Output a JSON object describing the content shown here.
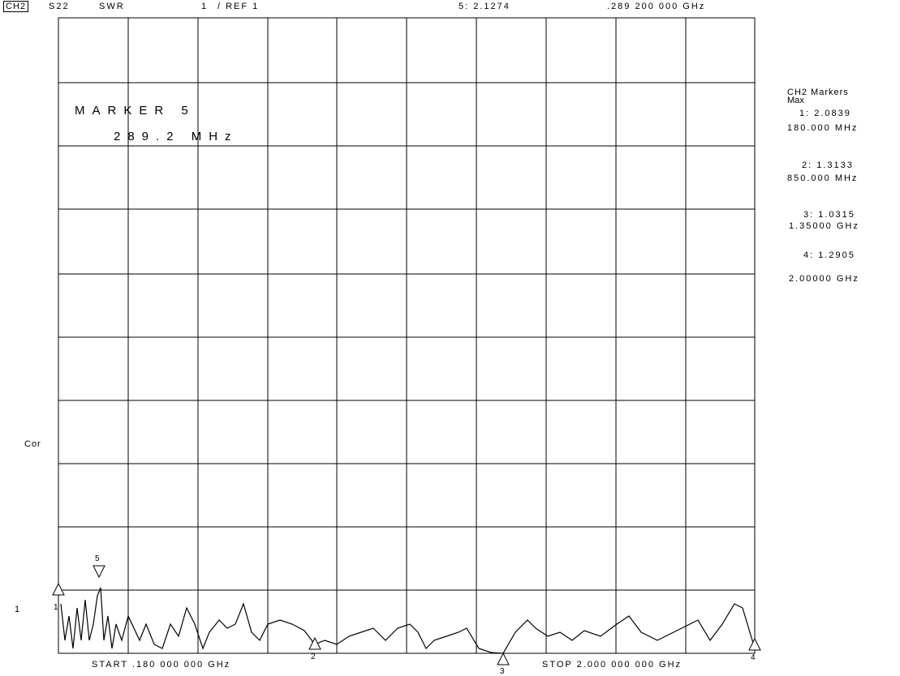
{
  "header": {
    "channel": "CH2",
    "parameter": "S22",
    "format": "SWR",
    "scale": "1",
    "reference": "/ REF 1",
    "active_marker": "5: 2.1274",
    "active_frequency": ".289 200 000 GHz"
  },
  "display": {
    "marker_title": "MARKER 5",
    "marker_frequency": "289.2 MHz"
  },
  "markers_panel": {
    "title": "CH2 Markers",
    "mode": "Max",
    "entries": [
      {
        "value": "1: 2.0839",
        "frequency": "180.000 MHz"
      },
      {
        "value": "2: 1.3133",
        "frequency": "850.000 MHz"
      },
      {
        "value": "3: 1.0315",
        "frequency": "1.35000 GHz"
      },
      {
        "value": "4: 1.2905",
        "frequency": "2.00000 GHz"
      }
    ]
  },
  "status": {
    "correction": "Cor",
    "reference_position": "1"
  },
  "footer": {
    "start": "START .180 000 000 GHz",
    "stop": "STOP 2.000 000 000 GHz"
  },
  "trace_markers": [
    "1",
    "2",
    "3",
    "4",
    "5"
  ]
}
